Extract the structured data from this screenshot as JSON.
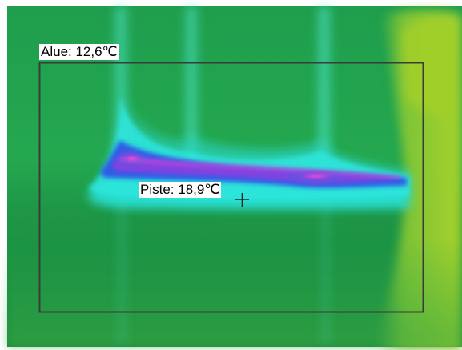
{
  "colors": {
    "background": "#ffffff",
    "thermal_green": "#23a64a",
    "thermal_yellow": "#9ccd2c",
    "cold_cyan": "#27e3dc",
    "cold_blue": "#2e55e6",
    "cold_magenta": "#d32bd9",
    "overlay_box": "#3b3b3b",
    "label_bg": "#ffffff",
    "label_text": "#000000"
  },
  "measurements": {
    "area": {
      "label": "Alue: 12,6℃"
    },
    "spot": {
      "label": "Piste: 18,9℃"
    }
  },
  "icons": {
    "spot_marker": "crosshair-icon"
  }
}
